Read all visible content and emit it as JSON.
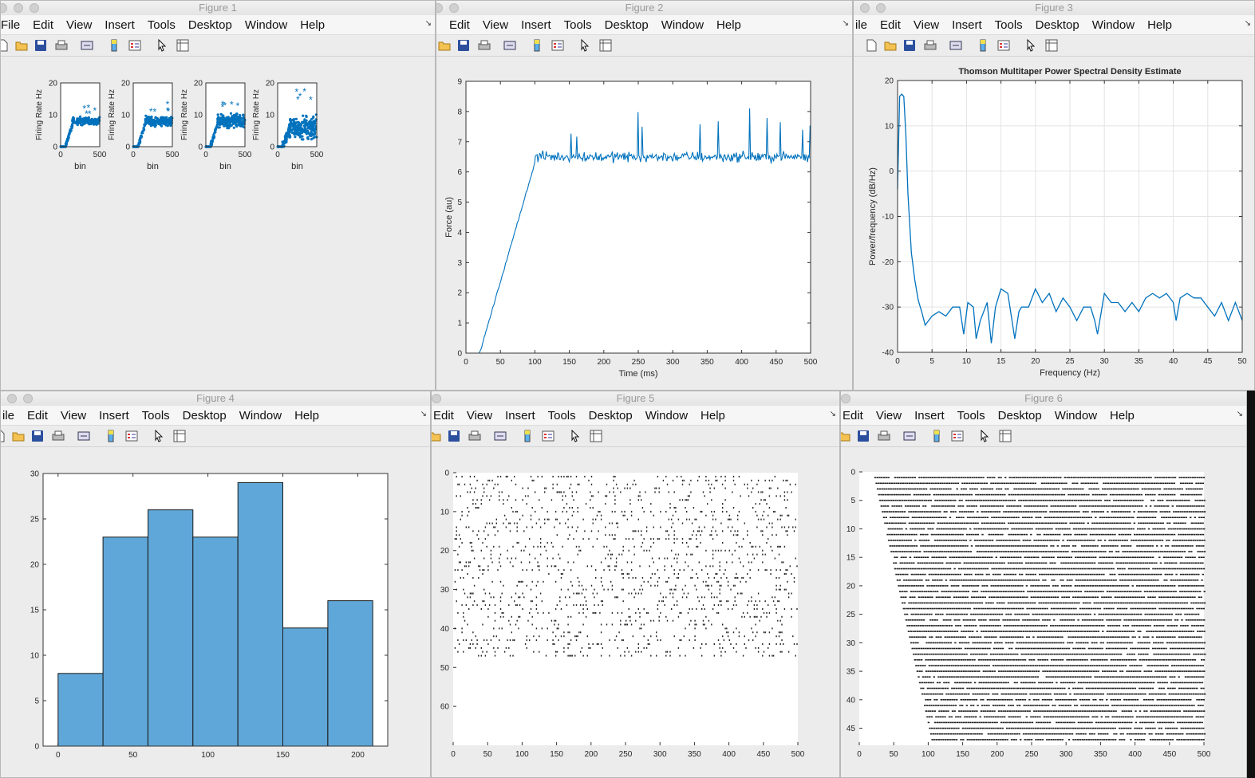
{
  "windows": {
    "fig1": {
      "title": "Figure 1"
    },
    "fig2": {
      "title": "Figure 2"
    },
    "fig3": {
      "title": "Figure 3"
    },
    "fig4": {
      "title": "Figure 4"
    },
    "fig5": {
      "title": "Figure 5"
    },
    "fig6": {
      "title": "Figure 6"
    }
  },
  "menus": {
    "fig1": [
      "File",
      "Edit",
      "View",
      "Insert",
      "Tools",
      "Desktop",
      "Window",
      "Help"
    ],
    "fig2": [
      "Edit",
      "View",
      "Insert",
      "Tools",
      "Desktop",
      "Window",
      "Help"
    ],
    "fig3": [
      "ile",
      "Edit",
      "View",
      "Insert",
      "Tools",
      "Desktop",
      "Window",
      "Help"
    ],
    "fig4": [
      "ile",
      "Edit",
      "View",
      "Insert",
      "Tools",
      "Desktop",
      "Window",
      "Help"
    ],
    "fig5": [
      "Edit",
      "View",
      "Insert",
      "Tools",
      "Desktop",
      "Window",
      "Help"
    ],
    "fig6": [
      "Edit",
      "View",
      "Insert",
      "Tools",
      "Desktop",
      "Window",
      "Help"
    ]
  },
  "toolbar_icons": [
    "new-figure-icon",
    "open-file-icon",
    "save-icon",
    "print-icon",
    "link-icon",
    "colorbar-icon",
    "legend-icon",
    "pointer-icon",
    "property-editor-icon"
  ],
  "colors": {
    "accent": "#0072bd",
    "bar_fill": "#5fa7d8",
    "raster": "#222222"
  },
  "chart_data": [
    {
      "type": "scatter",
      "id": "fig1",
      "subplots": 4,
      "xlabel": "bin",
      "ylabel": "Firing Rate Hz",
      "xlim": [
        0,
        500
      ],
      "ylim": [
        0,
        20
      ],
      "xticks": [
        "0",
        "500"
      ],
      "yticks": [
        "0",
        "10",
        "20"
      ],
      "series": [
        {
          "plateau": 8,
          "spread": 1.5,
          "max": 12
        },
        {
          "plateau": 8,
          "spread": 2,
          "max": 13
        },
        {
          "plateau": 8,
          "spread": 3,
          "max": 13
        },
        {
          "plateau": 6,
          "spread": 5,
          "max": 17
        }
      ]
    },
    {
      "type": "line",
      "id": "fig2",
      "xlabel": "Time (ms)",
      "ylabel": "Force (au)",
      "xlim": [
        0,
        500
      ],
      "ylim": [
        0,
        9
      ],
      "xticks": [
        "0",
        "50",
        "100",
        "150",
        "200",
        "250",
        "300",
        "350",
        "400",
        "450",
        "500"
      ],
      "yticks": [
        "0",
        "1",
        "2",
        "3",
        "4",
        "5",
        "6",
        "7",
        "8",
        "9"
      ],
      "x": [
        0,
        20,
        25,
        100,
        105,
        500
      ],
      "y": [
        0,
        0,
        0,
        6.4,
        6.5,
        6.5
      ]
    },
    {
      "type": "line",
      "id": "fig3",
      "title": "Thomson Multitaper Power Spectral Density Estimate",
      "xlabel": "Frequency (Hz)",
      "ylabel": "Power/frequency (dB/Hz)",
      "xlim": [
        0,
        50
      ],
      "ylim": [
        -40,
        20
      ],
      "grid": true,
      "xticks": [
        "0",
        "5",
        "10",
        "15",
        "20",
        "25",
        "30",
        "35",
        "40",
        "45",
        "50"
      ],
      "yticks": [
        "-40",
        "-30",
        "-20",
        "-10",
        "0",
        "10",
        "20"
      ],
      "x": [
        0,
        0.3,
        0.6,
        0.9,
        1.2,
        1.5,
        2,
        2.5,
        3,
        3.5,
        4,
        5,
        6,
        7,
        8,
        9,
        9.6,
        10.2,
        11,
        11.4,
        12,
        13,
        13.6,
        14.2,
        15,
        16,
        17,
        17.6,
        18,
        19,
        20,
        21,
        22,
        23,
        24,
        25,
        26,
        27,
        28,
        28.6,
        29,
        30,
        31,
        32,
        33,
        34,
        35,
        36,
        37,
        38,
        39,
        40,
        40.4,
        41,
        42,
        43,
        44,
        45,
        46,
        47,
        48,
        49,
        50
      ],
      "y": [
        -4,
        16.5,
        17,
        16.5,
        8,
        -5,
        -18,
        -24,
        -28.5,
        -31,
        -34,
        -32,
        -31,
        -32,
        -30,
        -30,
        -36,
        -29,
        -30,
        -37,
        -33,
        -29,
        -38,
        -30,
        -26,
        -27,
        -37,
        -31,
        -30,
        -30,
        -26,
        -29,
        -27,
        -31,
        -28,
        -30,
        -33,
        -30,
        -30,
        -33,
        -36,
        -27,
        -29,
        -29,
        -31,
        -29,
        -31,
        -28,
        -27,
        -28,
        -27,
        -29,
        -33,
        -28,
        -27,
        -28,
        -28,
        -30,
        -32,
        -29,
        -33,
        -29,
        -33
      ]
    },
    {
      "type": "bar",
      "id": "fig4",
      "edges": [
        0,
        30,
        60,
        90,
        120,
        150,
        180,
        210
      ],
      "values": [
        8,
        23,
        26,
        23,
        29,
        13,
        16
      ],
      "xlim": [
        -10,
        220
      ],
      "ylim": [
        0,
        30
      ],
      "xticks": [
        "0",
        "50",
        "100",
        "150",
        "200"
      ],
      "yticks": [
        "0",
        "5",
        "10",
        "15",
        "20",
        "25",
        "30"
      ]
    },
    {
      "type": "heatmap",
      "id": "fig5",
      "description_rows": 47,
      "xlim": [
        0,
        500
      ],
      "ylim": [
        0,
        70
      ],
      "xticks": [
        "0",
        "50",
        "100",
        "150",
        "200",
        "250",
        "300",
        "350",
        "400",
        "450",
        "500"
      ],
      "yticks": [
        "0",
        "10",
        "20",
        "30",
        "40",
        "50",
        "60"
      ]
    },
    {
      "type": "heatmap",
      "id": "fig6",
      "description_rows": 47,
      "xlim": [
        0,
        500
      ],
      "ylim": [
        0,
        48
      ],
      "xticks": [
        "0",
        "50",
        "100",
        "150",
        "200",
        "250",
        "300",
        "350",
        "400",
        "450",
        "500"
      ],
      "yticks": [
        "0",
        "5",
        "10",
        "15",
        "20",
        "25",
        "30",
        "35",
        "40",
        "45"
      ]
    }
  ]
}
